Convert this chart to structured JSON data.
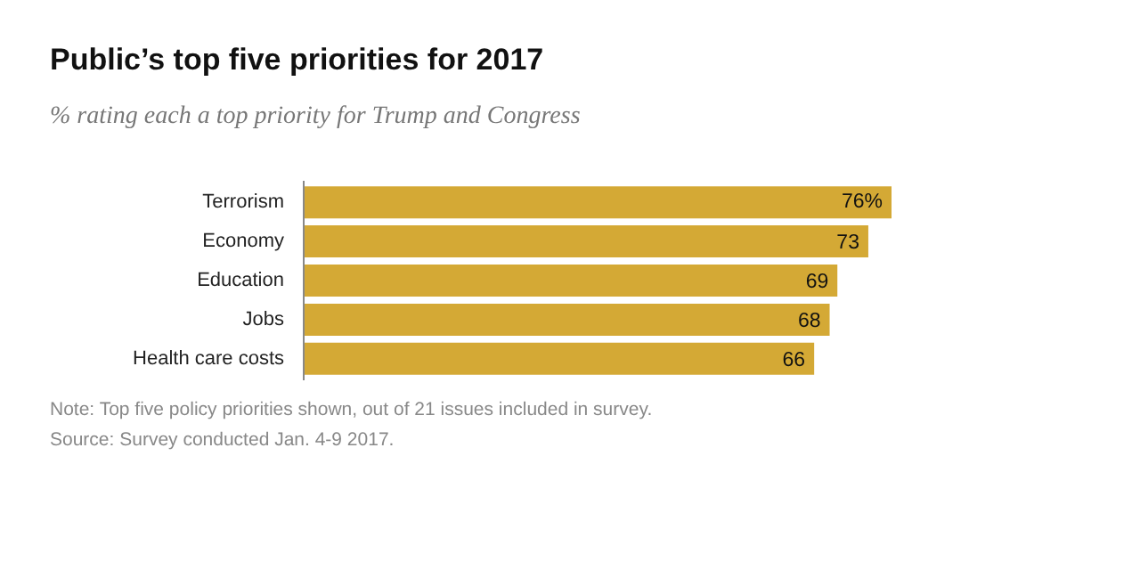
{
  "chart_data": {
    "type": "bar",
    "orientation": "horizontal",
    "title": "Public’s top five priorities for 2017",
    "subtitle": "% rating each a top priority for Trump and Congress",
    "categories": [
      "Terrorism",
      "Economy",
      "Education",
      "Jobs",
      "Health care costs"
    ],
    "values": [
      76,
      73,
      69,
      68,
      66
    ],
    "value_labels": [
      "76%",
      "73",
      "69",
      "68",
      "66"
    ],
    "color": "#d4a935",
    "annotations": [
      "Note: Top five policy priorities shown, out of 21 issues included in survey.",
      "Source: Survey conducted Jan. 4-9 2017."
    ]
  }
}
